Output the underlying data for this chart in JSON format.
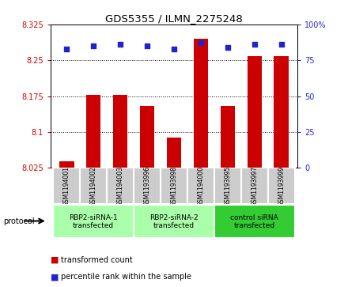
{
  "title": "GDS5355 / ILMN_2275248",
  "samples": [
    "GSM1194001",
    "GSM1194002",
    "GSM1194003",
    "GSM1193996",
    "GSM1193998",
    "GSM1194000",
    "GSM1193995",
    "GSM1193997",
    "GSM1193999"
  ],
  "bar_values": [
    8.038,
    8.178,
    8.178,
    8.155,
    8.088,
    8.295,
    8.155,
    8.258,
    8.258
  ],
  "percentile_values": [
    83,
    85,
    86,
    85,
    83,
    87,
    84,
    86,
    86
  ],
  "bar_color": "#cc0000",
  "dot_color": "#2222cc",
  "ylim_left": [
    8.025,
    8.325
  ],
  "ylim_right": [
    0,
    100
  ],
  "yticks_left": [
    8.025,
    8.1,
    8.175,
    8.25,
    8.325
  ],
  "ytick_labels_left": [
    "8.025",
    "8.1",
    "8.175",
    "8.25",
    "8.325"
  ],
  "yticks_right": [
    0,
    25,
    50,
    75,
    100
  ],
  "ytick_labels_right": [
    "0",
    "25",
    "50",
    "75",
    "100%"
  ],
  "groups": [
    {
      "label": "RBP2-siRNA-1\ntransfected",
      "indices": [
        0,
        1,
        2
      ],
      "color": "#aaffaa"
    },
    {
      "label": "RBP2-siRNA-2\ntransfected",
      "indices": [
        3,
        4,
        5
      ],
      "color": "#aaffaa"
    },
    {
      "label": "control siRNA\ntransfected",
      "indices": [
        6,
        7,
        8
      ],
      "color": "#33cc33"
    }
  ],
  "legend_bar_label": "transformed count",
  "legend_dot_label": "percentile rank within the sample",
  "protocol_label": "protocol",
  "bar_width": 0.55,
  "tick_label_area_color": "#cccccc"
}
